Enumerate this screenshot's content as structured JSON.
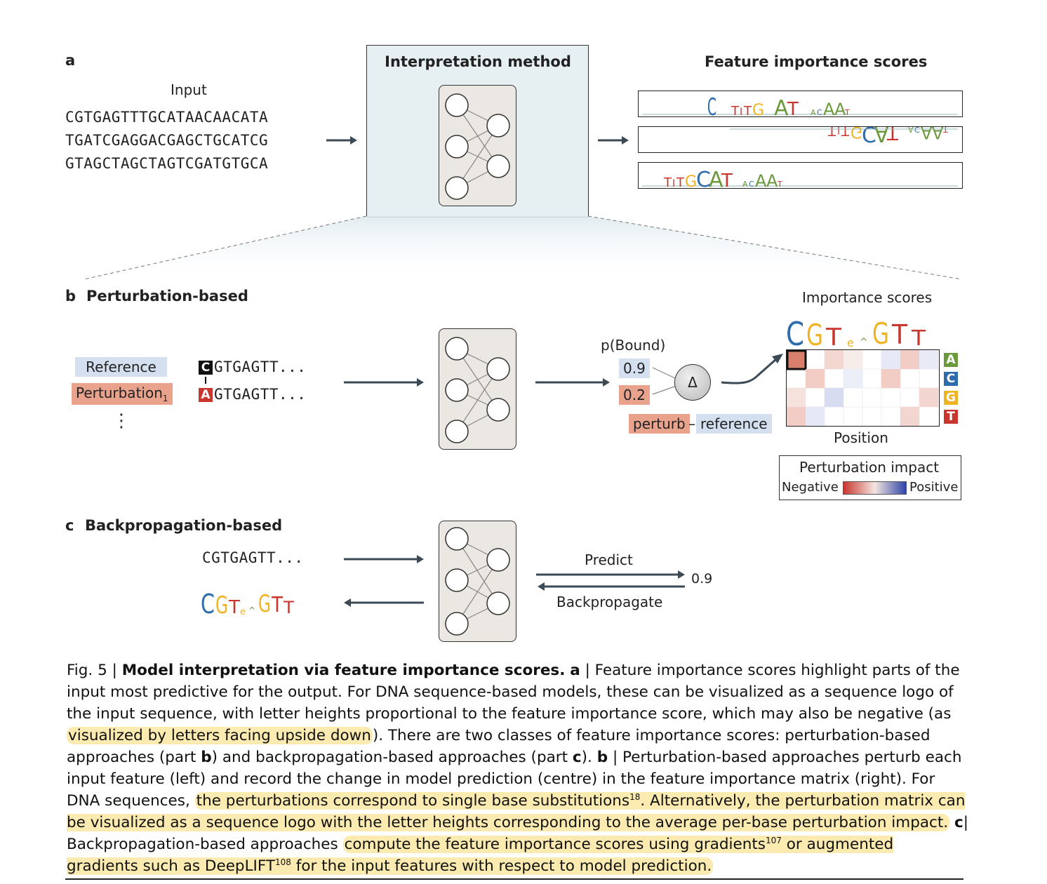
{
  "panel_a": {
    "letter": "a",
    "input_label": "Input",
    "sequences": [
      "CGTGAGTTTGCATAACAACATA",
      "TGATCGAGGACGAGCTGCATCG",
      "GTAGCTAGCTAGTCGATGTGCA"
    ],
    "method_title": "Interpretation method",
    "scores_title": "Feature importance scores"
  },
  "panel_b": {
    "letter": "b",
    "title": "Perturbation-based",
    "reference_label": "Reference",
    "perturbation_label": "Perturbation",
    "perturbation_subscript": "1",
    "ellipsis": "⋮",
    "ref_first_base": "C",
    "ref_seq_rest": "GTGAGTT...",
    "pert_first_base": "A",
    "pert_seq_rest": "GTGAGTT...",
    "pbound_label": "p(Bound)",
    "ref_value": "0.9",
    "pert_value": "0.2",
    "delta_symbol": "Δ",
    "diff_perturb": "perturb",
    "diff_minus": "–",
    "diff_reference": "reference",
    "importance_title": "Importance scores",
    "position_label": "Position",
    "bases": [
      "A",
      "C",
      "G",
      "T"
    ],
    "legend_title": "Perturbation impact",
    "legend_negative": "Negative",
    "legend_positive": "Positive"
  },
  "panel_c": {
    "letter": "c",
    "title": "Backpropagation-based",
    "seq": "CGTGAGTT...",
    "predict_label": "Predict",
    "backprop_label": "Backpropagate",
    "output_value": "0.9"
  },
  "caption": {
    "fig": "Fig. 5 |",
    "title": "Model interpretation via feature importance scores.",
    "p1": "a",
    "t1": "| Feature importance scores highlight parts of the input most predictive for the output. For DNA sequence-based models, these can be visualized as a sequence logo of the input sequence, with letter heights proportional to the feature importance score, which may also be negative (as",
    "h1": "visualized by letters facing upside down",
    "t2": "). There are two classes of feature importance scores: perturbation-based approaches (part",
    "p2": "b",
    "t3": ") and backpropagation-based approaches (part",
    "p3": "c",
    "t4": ").",
    "p4": "b",
    "t5": "| Perturbation-based approaches perturb each input feature (left) and record the change in model prediction (centre) in the feature importance matrix (right). For DNA sequences,",
    "h2": "the perturbations correspond to single base substitutions",
    "ref1": "18",
    "h3": ". Alternatively, the perturbation matrix can be visualized as a sequence logo with the letter heights corresponding to the average per-base perturbation impact.",
    "p5": "c",
    "t6": "| Backpropagation-based approaches",
    "h4": "compute the feature importance scores using gradients",
    "ref2": "107",
    "h5": "or augmented gradients such as DeepLIFT",
    "ref3": "108",
    "h6": "for the input features with respect to model prediction."
  },
  "colors": {
    "A": "#6a9a3c",
    "C": "#2f6cad",
    "G": "#f0b323",
    "T": "#c8362e",
    "reference_bg": "#d4dff0",
    "perturbation_bg": "#e9a38d",
    "highlight": "#fcebb0",
    "method_box_bg": "#e6eff2",
    "net_bg": "#ebe7e2"
  }
}
